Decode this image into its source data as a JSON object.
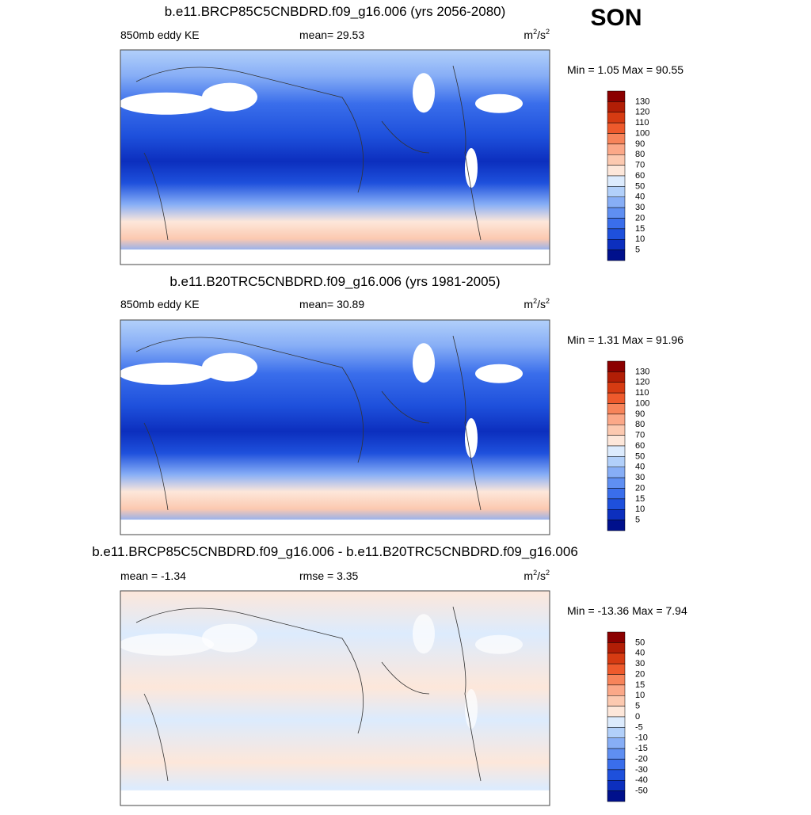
{
  "season": "SON",
  "colormap": [
    "#8b0000",
    "#b21e06",
    "#d63b12",
    "#ee5a2c",
    "#f7845a",
    "#fba888",
    "#fcc9b0",
    "#fde7da",
    "#dcebfd",
    "#b2d0fa",
    "#87aef6",
    "#5f8ff2",
    "#3a6eeb",
    "#1e50dc",
    "#0c2fbe",
    "#00108c"
  ],
  "panels": [
    {
      "title": "b.e11.BRCP85C5CNBDRD.f09_g16.006 (yrs 2056-2080)",
      "left_label": "850mb eddy KE",
      "center_label": "mean=  29.53",
      "units": {
        "base": "m",
        "exp1": "2",
        "mid": "/s",
        "exp2": "2"
      },
      "min_max": "Min =   1.05 Max =  90.55",
      "colorbar_labels": [
        130,
        120,
        110,
        100,
        90,
        80,
        70,
        60,
        50,
        40,
        30,
        20,
        15,
        10,
        5
      ],
      "kind": "field"
    },
    {
      "title": "b.e11.B20TRC5CNBDRD.f09_g16.006 (yrs 1981-2005)",
      "left_label": "850mb eddy KE",
      "center_label": "mean=  30.89",
      "units": {
        "base": "m",
        "exp1": "2",
        "mid": "/s",
        "exp2": "2"
      },
      "min_max": "Min =   1.31 Max =  91.96",
      "colorbar_labels": [
        130,
        120,
        110,
        100,
        90,
        80,
        70,
        60,
        50,
        40,
        30,
        20,
        15,
        10,
        5
      ],
      "kind": "field"
    },
    {
      "title": "b.e11.BRCP85C5CNBDRD.f09_g16.006 - b.e11.B20TRC5CNBDRD.f09_g16.006",
      "left_label": "mean =  -1.34",
      "center_label": "rmse =   3.35",
      "units": {
        "base": "m",
        "exp1": "2",
        "mid": "/s",
        "exp2": "2"
      },
      "min_max": "Min = -13.36 Max =   7.94",
      "colorbar_labels": [
        50,
        40,
        30,
        20,
        15,
        10,
        5,
        0,
        -5,
        -10,
        -15,
        -20,
        -30,
        -40,
        -50
      ],
      "kind": "diff"
    }
  ]
}
